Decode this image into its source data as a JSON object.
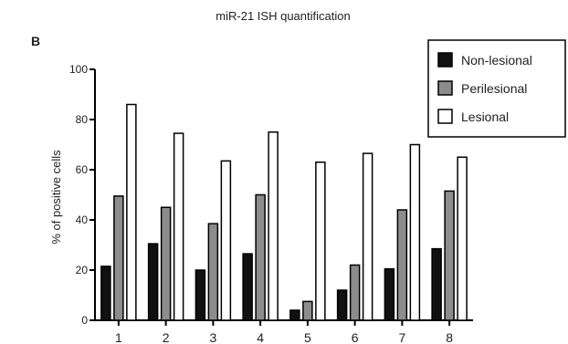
{
  "panel_label": "B",
  "chart_data": {
    "type": "bar",
    "title": "miR-21 ISH quantification",
    "xlabel": "",
    "ylabel": "% of positive cells",
    "ylim": [
      0,
      100
    ],
    "yticks": [
      0,
      20,
      40,
      60,
      80,
      100
    ],
    "categories": [
      "1",
      "2",
      "3",
      "4",
      "5",
      "6",
      "7",
      "8"
    ],
    "series": [
      {
        "name": "Non-lesional",
        "color": "#111111",
        "values": [
          21.5,
          30.5,
          20,
          26.5,
          4,
          12,
          20.5,
          28.5
        ]
      },
      {
        "name": "Perilesional",
        "color": "#8c8c8c",
        "values": [
          49.5,
          45,
          38.5,
          50,
          7.5,
          22,
          44,
          51.5
        ]
      },
      {
        "name": "Lesional",
        "color": "#ffffff",
        "values": [
          86,
          74.5,
          63.5,
          75,
          63,
          66.5,
          70,
          65
        ]
      }
    ],
    "legend_position": "top-right",
    "grid": false
  }
}
